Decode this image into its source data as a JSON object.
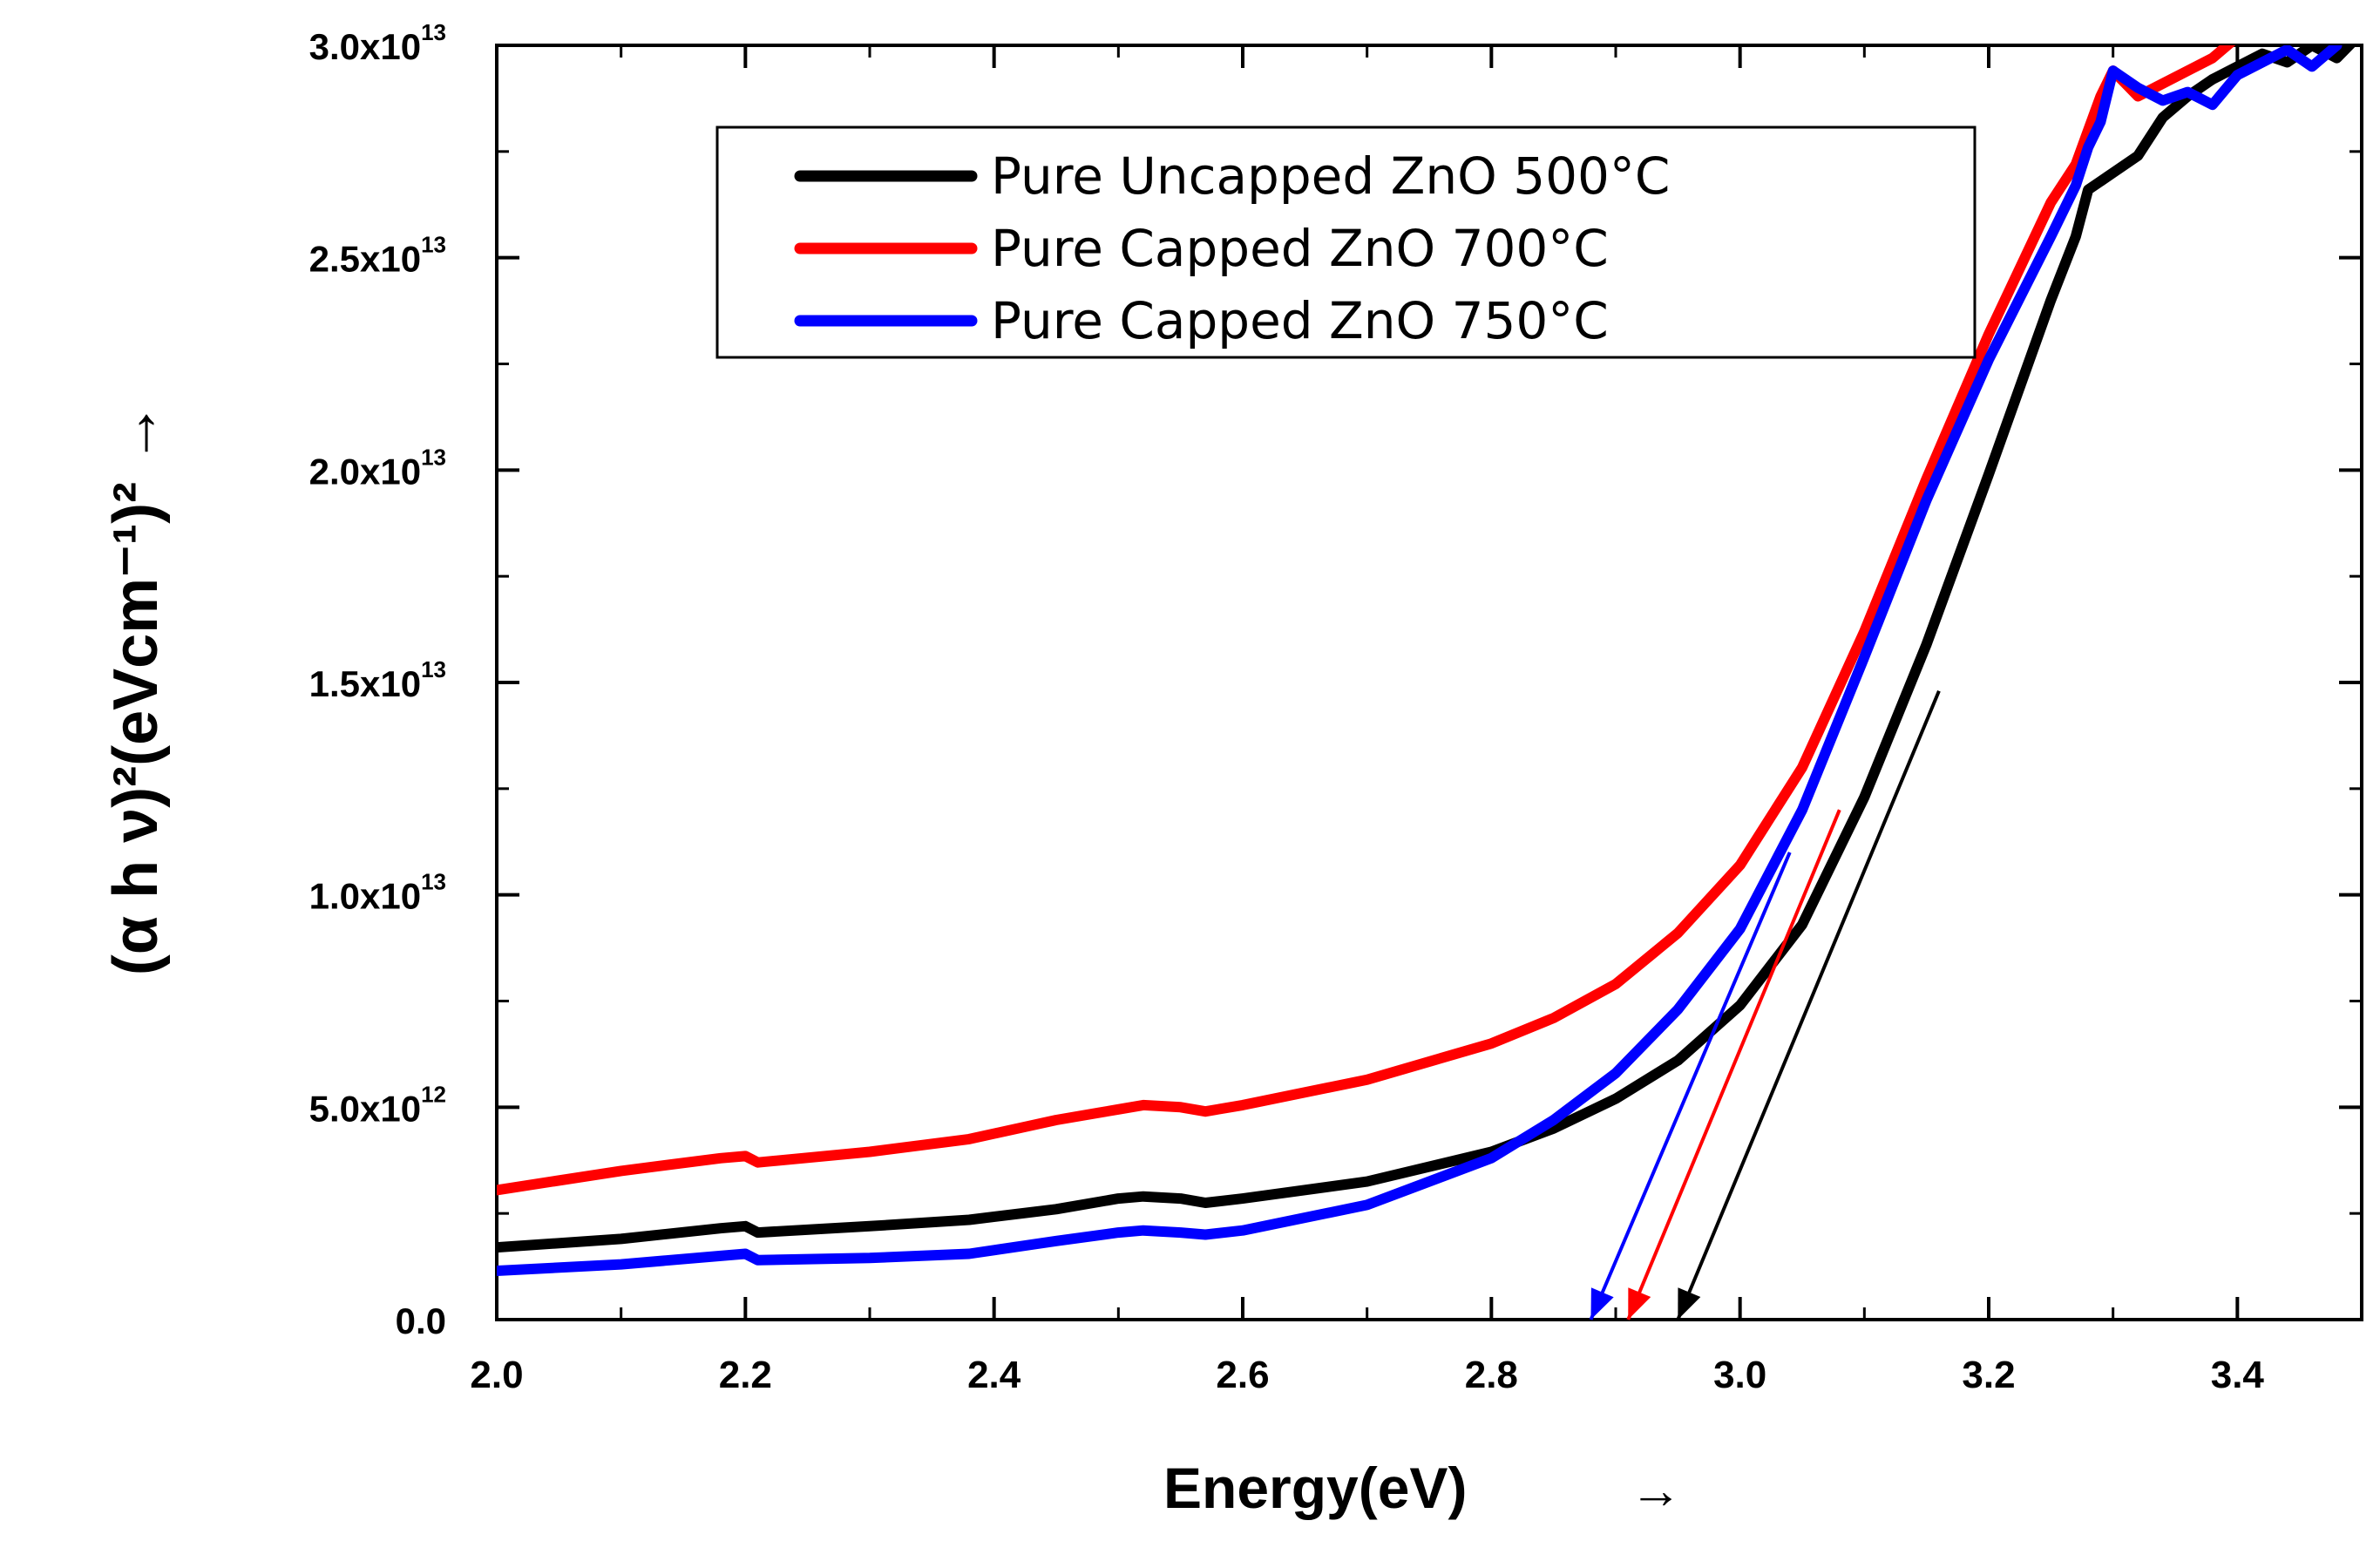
{
  "chart_data": {
    "type": "line",
    "title": "",
    "xlabel": "Energy(eV)",
    "xlabel_arrow": "→",
    "ylabel": "(α h ν)²(eVcm⁻¹)² →",
    "xlim": [
      2.0,
      3.5
    ],
    "ylim": [
      0,
      30000000000000
    ],
    "x_ticks": [
      {
        "value": 2.0,
        "label": "2.0"
      },
      {
        "value": 2.2,
        "label": "2.2"
      },
      {
        "value": 2.4,
        "label": "2.4"
      },
      {
        "value": 2.6,
        "label": "2.6"
      },
      {
        "value": 2.8,
        "label": "2.8"
      },
      {
        "value": 3.0,
        "label": "3.0"
      },
      {
        "value": 3.2,
        "label": "3.2"
      },
      {
        "value": 3.4,
        "label": "3.4"
      }
    ],
    "y_ticks": [
      {
        "value": 0,
        "mantissa": "0.0",
        "exp": ""
      },
      {
        "value": 5000000000000,
        "mantissa": "5.0x10",
        "exp": "12"
      },
      {
        "value": 10000000000000,
        "mantissa": "1.0x10",
        "exp": "13"
      },
      {
        "value": 15000000000000,
        "mantissa": "1.5x10",
        "exp": "13"
      },
      {
        "value": 20000000000000,
        "mantissa": "2.0x10",
        "exp": "13"
      },
      {
        "value": 25000000000000,
        "mantissa": "2.5x10",
        "exp": "13"
      },
      {
        "value": 30000000000000,
        "mantissa": "3.0x10",
        "exp": "13"
      }
    ],
    "legend_position": "top-center",
    "series": [
      {
        "name": "Pure Uncapped ZnO 500°C",
        "color": "#000000",
        "x": [
          2.0,
          2.1,
          2.18,
          2.2,
          2.21,
          2.3,
          2.38,
          2.45,
          2.5,
          2.52,
          2.55,
          2.57,
          2.6,
          2.7,
          2.8,
          2.85,
          2.9,
          2.95,
          3.0,
          3.05,
          3.1,
          3.15,
          3.2,
          3.25,
          3.27,
          3.28,
          3.3,
          3.32,
          3.34,
          3.36,
          3.38,
          3.4,
          3.42,
          3.44,
          3.46,
          3.48,
          3.5
        ],
        "y": [
          1700000000000.0,
          1900000000000.0,
          2150000000000.0,
          2200000000000.0,
          2050000000000.0,
          2200000000000.0,
          2350000000000.0,
          2600000000000.0,
          2850000000000.0,
          2900000000000.0,
          2850000000000.0,
          2750000000000.0,
          2850000000000.0,
          3250000000000.0,
          3950000000000.0,
          4500000000000.0,
          5200000000000.0,
          6100000000000.0,
          7400000000000.0,
          9300000000000.0,
          12300000000000.0,
          15900000000000.0,
          19900000000000.0,
          24000000000000.0,
          25500000000000.0,
          26600000000000.0,
          27000000000000.0,
          27400000000000.0,
          28300000000000.0,
          28800000000000.0,
          29200000000000.0,
          29500000000000.0,
          29800000000000.0,
          29600000000000.0,
          30000000000000.0,
          29700000000000.0,
          30300000000000.0
        ]
      },
      {
        "name": "Pure Capped ZnO 700°C",
        "color": "#ff0000",
        "x": [
          2.0,
          2.1,
          2.18,
          2.2,
          2.21,
          2.3,
          2.38,
          2.45,
          2.5,
          2.52,
          2.55,
          2.57,
          2.6,
          2.7,
          2.8,
          2.85,
          2.9,
          2.95,
          3.0,
          3.05,
          3.1,
          3.15,
          3.2,
          3.25,
          3.27,
          3.28,
          3.29,
          3.3,
          3.32,
          3.34,
          3.36,
          3.38,
          3.4
        ],
        "y": [
          3050000000000.0,
          3500000000000.0,
          3800000000000.0,
          3850000000000.0,
          3700000000000.0,
          3950000000000.0,
          4250000000000.0,
          4700000000000.0,
          4950000000000.0,
          5050000000000.0,
          5000000000000.0,
          4900000000000.0,
          5050000000000.0,
          5650000000000.0,
          6500000000000.0,
          7100000000000.0,
          7900000000000.0,
          9100000000000.0,
          10700000000000.0,
          13000000000000.0,
          16200000000000.0,
          19800000000000.0,
          23200000000000.0,
          26300000000000.0,
          27200000000000.0,
          28000000000000.0,
          28800000000000.0,
          29400000000000.0,
          28800000000000.0,
          29100000000000.0,
          29400000000000.0,
          29700000000000.0,
          30200000000000.0
        ]
      },
      {
        "name": "Pure Capped ZnO 750°C",
        "color": "#0000ff",
        "x": [
          2.0,
          2.1,
          2.18,
          2.2,
          2.21,
          2.3,
          2.38,
          2.45,
          2.5,
          2.52,
          2.55,
          2.57,
          2.6,
          2.7,
          2.8,
          2.85,
          2.9,
          2.95,
          3.0,
          3.05,
          3.1,
          3.15,
          3.2,
          3.25,
          3.27,
          3.28,
          3.29,
          3.3,
          3.32,
          3.34,
          3.36,
          3.38,
          3.4,
          3.42,
          3.44,
          3.46,
          3.48
        ],
        "y": [
          1150000000000.0,
          1300000000000.0,
          1500000000000.0,
          1550000000000.0,
          1400000000000.0,
          1450000000000.0,
          1550000000000.0,
          1850000000000.0,
          2050000000000.0,
          2100000000000.0,
          2050000000000.0,
          2000000000000.0,
          2100000000000.0,
          2700000000000.0,
          3800000000000.0,
          4700000000000.0,
          5800000000000.0,
          7300000000000.0,
          9200000000000.0,
          12000000000000.0,
          15600000000000.0,
          19300000000000.0,
          22600000000000.0,
          25500000000000.0,
          26700000000000.0,
          27600000000000.0,
          28200000000000.0,
          29400000000000.0,
          29000000000000.0,
          28700000000000.0,
          28900000000000.0,
          28600000000000.0,
          29300000000000.0,
          29600000000000.0,
          29900000000000.0,
          29500000000000.0,
          30000000000000.0
        ]
      }
    ],
    "extrapolation_lines": [
      {
        "name": "Pure Uncapped ZnO 500°C",
        "color": "#000000",
        "from": [
          3.16,
          14800000000000
        ],
        "to": [
          2.95,
          0
        ]
      },
      {
        "name": "Pure Capped ZnO 700°C",
        "color": "#ff0000",
        "from": [
          3.08,
          12000000000000
        ],
        "to": [
          2.91,
          0
        ]
      },
      {
        "name": "Pure Capped ZnO 750°C",
        "color": "#0000ff",
        "from": [
          3.04,
          11000000000000
        ],
        "to": [
          2.88,
          0
        ]
      }
    ]
  }
}
